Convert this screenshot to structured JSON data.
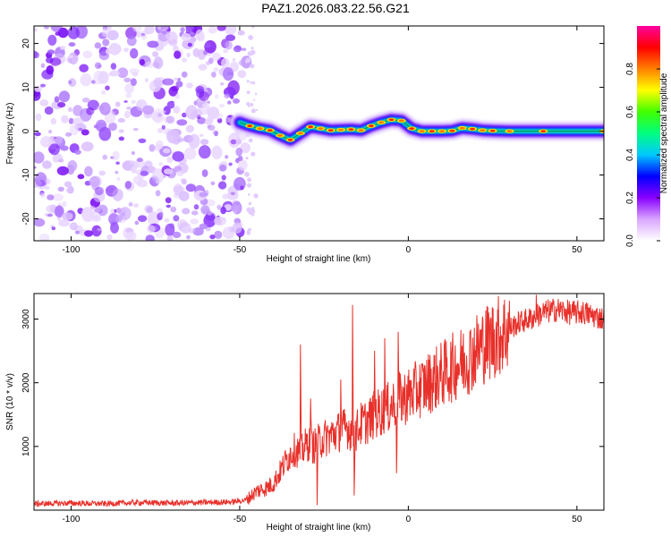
{
  "page_title": "PAZ1.2026.083.22.56.G21",
  "chart_data": [
    {
      "type": "heatmap",
      "name": "spectrogram",
      "xlabel": "Height of straight line (km)",
      "ylabel": "Frequency (Hz)",
      "xlim": [
        -111,
        58
      ],
      "ylim": [
        -25,
        24
      ],
      "x_ticks": [
        -100,
        -50,
        0,
        50
      ],
      "x_tick_labels": [
        "-100",
        "-50",
        "0",
        "50"
      ],
      "y_ticks": [
        -20,
        -10,
        0,
        10,
        20
      ],
      "y_tick_labels": [
        "-20",
        "-10",
        "0",
        "10",
        "20"
      ],
      "noise_region_x": [
        -111,
        -48
      ],
      "ridge": {
        "x": [
          -50,
          -47,
          -44,
          -41,
          -38,
          -35,
          -32,
          -29,
          -26,
          -23,
          -20,
          -17,
          -14,
          -11,
          -8,
          -5,
          -2,
          1,
          4,
          7,
          10,
          13,
          16,
          19,
          22,
          25,
          30,
          40,
          58
        ],
        "frequency": [
          2.0,
          1.2,
          0.6,
          0.2,
          -1.0,
          -2.0,
          -0.5,
          1.0,
          0.6,
          0.2,
          0.3,
          0.4,
          0.2,
          1.2,
          2.0,
          2.6,
          2.4,
          0.6,
          0.0,
          0.0,
          0.0,
          0.1,
          0.7,
          0.5,
          0.2,
          0.1,
          0.0,
          0.0,
          0.0
        ]
      },
      "colorbar": {
        "label": "Normalized spectral amplitude",
        "range": [
          0,
          1
        ],
        "ticks": [
          0.0,
          0.2,
          0.4,
          0.6,
          0.8
        ],
        "tick_labels": [
          "0.0",
          "0.2",
          "0.4",
          "0.6",
          "0.8"
        ],
        "colors": [
          "#ffffff",
          "#d9a6ff",
          "#8a00ff",
          "#0000ff",
          "#00c8ff",
          "#00ff80",
          "#40ff00",
          "#ffff00",
          "#ff8000",
          "#ff0000",
          "#ff00a0"
        ]
      }
    },
    {
      "type": "line",
      "name": "snr",
      "xlabel": "Height of straight line (km)",
      "ylabel": "SNR (10 * v/v)",
      "xlim": [
        -111,
        58
      ],
      "ylim": [
        0,
        3400
      ],
      "x_ticks": [
        -100,
        -50,
        0,
        50
      ],
      "x_tick_labels": [
        "-100",
        "-50",
        "0",
        "50"
      ],
      "y_ticks": [
        1000,
        2000,
        3000
      ],
      "y_tick_labels": [
        "1000",
        "2000",
        "3000"
      ],
      "line_color": "#e8302a",
      "x": [
        -111,
        -100,
        -90,
        -80,
        -70,
        -60,
        -52,
        -48,
        -45,
        -42,
        -40,
        -38,
        -36,
        -34,
        -32,
        -30,
        -28,
        -26,
        -24,
        -22,
        -20,
        -18,
        -16,
        -14,
        -12,
        -10,
        -8,
        -6,
        -4,
        -2,
        0,
        3,
        6,
        9,
        12,
        15,
        18,
        21,
        24,
        27,
        30,
        33,
        36,
        40,
        44,
        48,
        52,
        55,
        58
      ],
      "snr": [
        100,
        110,
        100,
        120,
        110,
        120,
        130,
        160,
        300,
        350,
        420,
        600,
        800,
        950,
        900,
        1050,
        1000,
        1100,
        1150,
        1200,
        1250,
        1300,
        1200,
        1350,
        1400,
        1500,
        1550,
        1600,
        1700,
        1750,
        1800,
        1900,
        2000,
        2100,
        2200,
        2300,
        2400,
        2550,
        2650,
        2750,
        2850,
        2950,
        3000,
        3100,
        3150,
        3100,
        3100,
        3050,
        3000
      ],
      "spikes": [
        {
          "x": -32,
          "y": 2600
        },
        {
          "x": -29,
          "y": 1750
        },
        {
          "x": -20,
          "y": 2050
        },
        {
          "x": -16.5,
          "y": 3220
        },
        {
          "x": -10,
          "y": 2500
        },
        {
          "x": -7,
          "y": 2700
        },
        {
          "x": -3,
          "y": 2800
        },
        {
          "x": 38,
          "y": 3380
        }
      ],
      "dips": [
        {
          "x": -27,
          "y": 80
        },
        {
          "x": -16,
          "y": 230
        },
        {
          "x": -3.5,
          "y": 580
        }
      ]
    }
  ]
}
